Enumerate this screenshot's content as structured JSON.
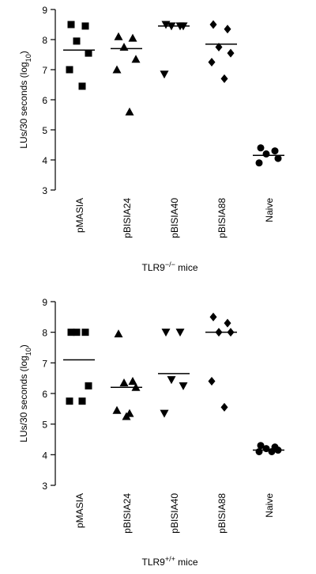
{
  "chart_data": [
    {
      "type": "dotplot",
      "y_label": {
        "text": "LUs/30 seconds (log",
        "sub": "10",
        "end": ")"
      },
      "x_label": {
        "base": "TLR9",
        "sup": "−/−",
        "rest": " mice"
      },
      "categories": [
        "pMASIA",
        "pBISIA24",
        "pBISIA40",
        "pBISIA88",
        "Naive"
      ],
      "markers": [
        "square",
        "triangle-up",
        "triangle-down",
        "diamond",
        "circle"
      ],
      "color": "#000000",
      "values": [
        [
          8.5,
          8.45,
          7.95,
          7.55,
          7.0,
          6.45
        ],
        [
          8.1,
          8.05,
          7.75,
          7.35,
          7.0,
          5.6
        ],
        [
          8.5,
          8.45,
          8.45,
          8.45,
          6.85
        ],
        [
          8.5,
          8.35,
          7.75,
          7.55,
          7.25,
          6.7
        ],
        [
          4.4,
          4.3,
          4.2,
          4.05,
          3.9
        ]
      ],
      "means": [
        7.65,
        7.7,
        8.45,
        7.85,
        4.15
      ],
      "ylim": [
        3,
        9
      ],
      "yticks": [
        3,
        4,
        5,
        6,
        7,
        8,
        9
      ]
    },
    {
      "type": "dotplot",
      "y_label": {
        "text": "LUs/30 seconds (log",
        "sub": "10",
        "end": ")"
      },
      "x_label": {
        "base": "TLR9",
        "sup": "+/+",
        "rest": " mice"
      },
      "categories": [
        "pMASIA",
        "pBISIA24",
        "pBISIA40",
        "pBISIA88",
        "Naive"
      ],
      "markers": [
        "square",
        "triangle-up",
        "triangle-down",
        "diamond",
        "circle"
      ],
      "color": "#000000",
      "values": [
        [
          8.0,
          8.0,
          8.0,
          6.25,
          5.75,
          5.75
        ],
        [
          7.95,
          6.4,
          6.35,
          6.2,
          5.45,
          5.35,
          5.25
        ],
        [
          8.0,
          8.0,
          6.45,
          6.25,
          5.35
        ],
        [
          8.5,
          8.3,
          8.0,
          8.0,
          6.4,
          5.55
        ],
        [
          4.3,
          4.25,
          4.2,
          4.15,
          4.1,
          4.1
        ]
      ],
      "means": [
        7.1,
        6.2,
        6.65,
        8.0,
        4.15
      ],
      "ylim": [
        3,
        9
      ],
      "yticks": [
        3,
        4,
        5,
        6,
        7,
        8,
        9
      ]
    }
  ]
}
